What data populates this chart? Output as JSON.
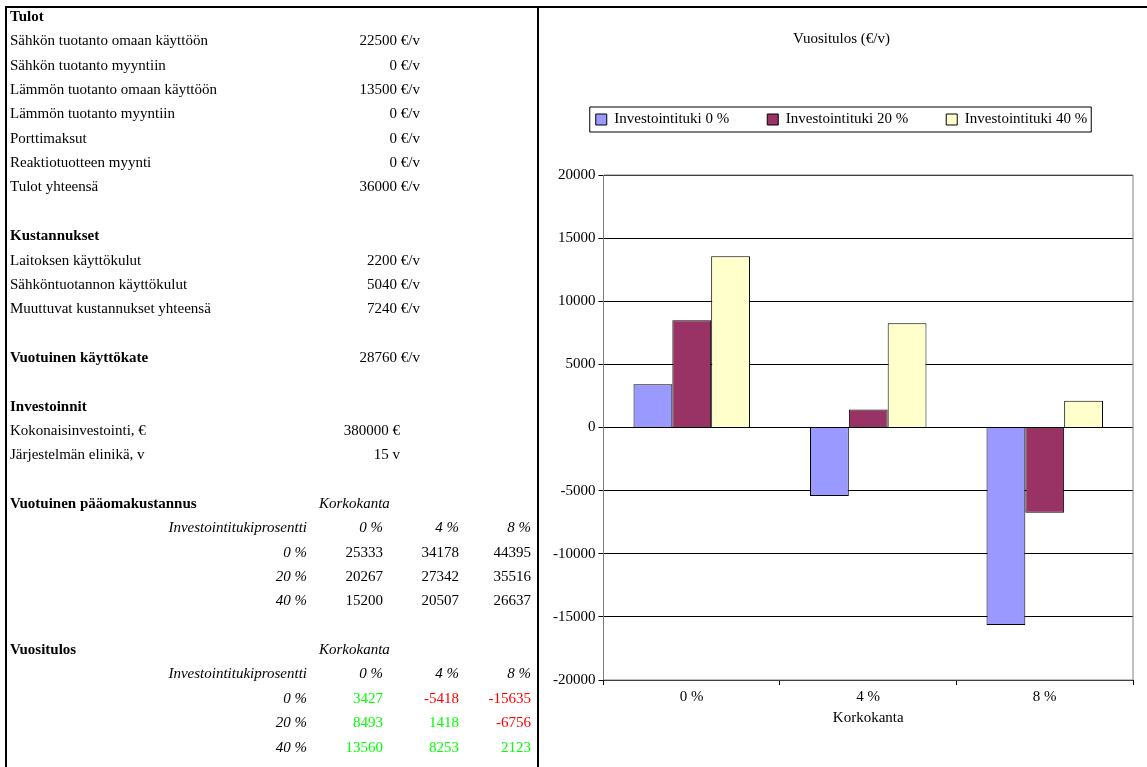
{
  "chart_data": [
    {
      "type": "other",
      "annotations": [
        "Tulot",
        "Sähkön tuotanto omaan käyttöön",
        "22500 €/v",
        "Sähkön tuotanto myyntiin",
        "0 €/v",
        "Lämmön tuotanto omaan käyttöön",
        "13500 €/v",
        "Lämmön tuotanto myyntiin",
        "0 €/v",
        "Porttimaksut",
        "0 €/v",
        "Reaktiotuotteen myynti",
        "0 €/v",
        "Tulot yhteensä",
        "36000 €/v",
        "Kustannukset",
        "Laitoksen käyttökulut",
        "2200 €/v",
        "Sähköntuotannon käyttökulut",
        "5040 €/v",
        "Muuttuvat kustannukset yhteensä",
        "7240 €/v",
        "Vuotuinen käyttökate",
        "28760 €/v",
        "Investoinnit",
        "Kokonaisinvestointi, €",
        "380000 €",
        "Järjestelmän elinikä, v",
        "15 v",
        "Vuotuinen pääomakustannus",
        "Korkokanta",
        "Investointitukiprosentti",
        "0 %",
        "4 %",
        "8 %",
        "0 %",
        "25333",
        "34178",
        "44395",
        "20 %",
        "20267",
        "27342",
        "35516",
        "40 %",
        "15200",
        "20507",
        "26637",
        "Vuositulos",
        "Korkokanta",
        "Investointitukiprosentti",
        "0 %",
        "4 %",
        "8 %",
        "0 %",
        "3427",
        "-5418",
        "-15635",
        "20 %",
        "8493",
        "1418",
        "-6756",
        "40 %",
        "13560",
        "8253",
        "2123"
      ]
    },
    {
      "type": "bar",
      "title": "Vuositulos (€/v)",
      "xlabel": "Korkokanta",
      "categories": [
        "0 %",
        "4 %",
        "8 %"
      ],
      "series": [
        {
          "name": "Investointituki 0 %",
          "color": "#9999ff",
          "values": [
            3427,
            -5418,
            -15635
          ]
        },
        {
          "name": "Investointituki 20 %",
          "color": "#993366",
          "values": [
            8493,
            1418,
            -6756
          ]
        },
        {
          "name": "Investointituki 40 %",
          "color": "#ffffcc",
          "values": [
            13560,
            8253,
            2123
          ]
        }
      ],
      "ylim": [
        -20000,
        20000
      ],
      "yticks": [
        -20000,
        -15000,
        -10000,
        -5000,
        0,
        5000,
        10000,
        15000,
        20000
      ],
      "grid": "y",
      "legend": "top"
    }
  ]
}
